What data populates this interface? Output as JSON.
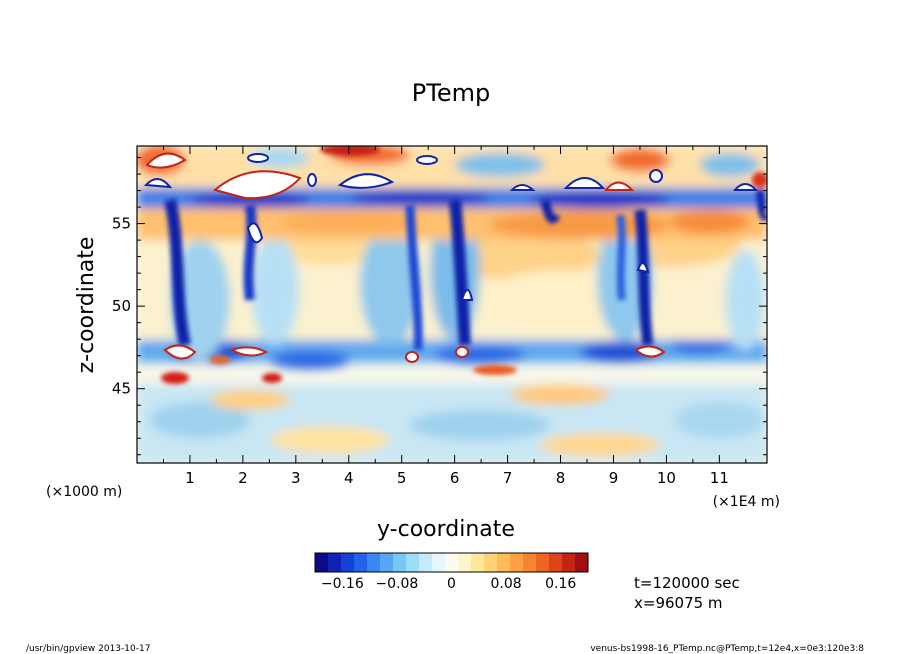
{
  "chart_data": {
    "type": "heatmap",
    "title": "PTemp",
    "xlabel": "y-coordinate",
    "ylabel": "z-coordinate",
    "x_unit_left": "(×1000 m)",
    "x_unit_right": "(×1E4 m)",
    "xlim": [
      0,
      11.9
    ],
    "ylim": [
      40.5,
      59.7
    ],
    "x_ticks": [
      "1",
      "2",
      "3",
      "4",
      "5",
      "6",
      "7",
      "8",
      "9",
      "10",
      "11"
    ],
    "y_ticks": [
      "45",
      "50",
      "55"
    ],
    "colorbar": {
      "range": [
        -0.2,
        0.2
      ],
      "ticks": [
        "−0.16",
        "−0.08",
        "0",
        "0.08",
        "0.16"
      ],
      "tick_values": [
        -0.16,
        -0.08,
        0,
        0.08,
        0.16
      ],
      "colors": [
        "#0b0b8a",
        "#0f22b4",
        "#1740d8",
        "#2462ea",
        "#3a86f2",
        "#56a8f6",
        "#76c6f8",
        "#9ddcfa",
        "#c4ebfb",
        "#e6f6fd",
        "#fbfbf4",
        "#fff5cc",
        "#ffe79e",
        "#ffd478",
        "#ffbc58",
        "#fca042",
        "#f7842f",
        "#ee6422",
        "#dd421a",
        "#c42416",
        "#a01010"
      ]
    },
    "annotations": [
      "t=120000 sec",
      "x=96075 m"
    ]
  },
  "footer": {
    "left": "/usr/bin/gpview  2013-10-17",
    "right": "venus-bs1998-16_PTemp.nc@PTemp,t=12e4,x=0e3:120e3:8"
  }
}
